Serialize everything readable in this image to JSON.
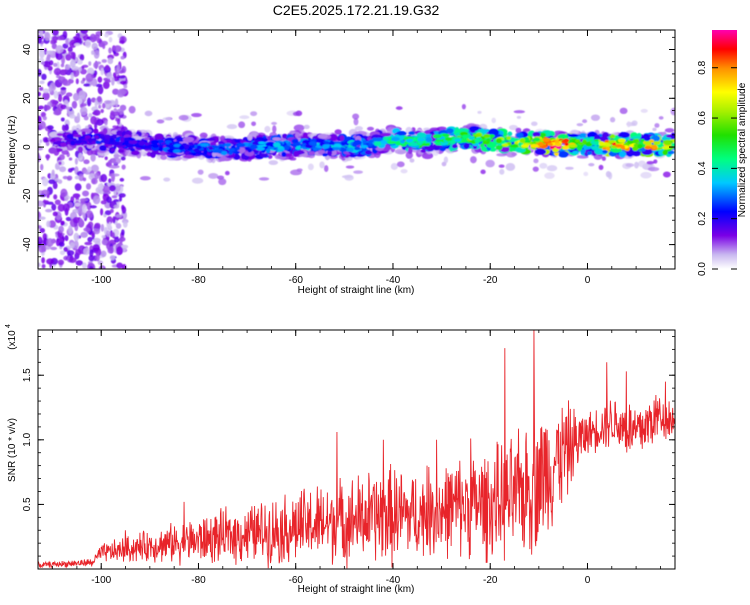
{
  "title": "C2E5.2025.172.21.19.G32",
  "chart_data": [
    {
      "type": "heatmap",
      "xlabel": "Height of straight line (km)",
      "ylabel": "Frequency (Hz)",
      "xlim": [
        -113,
        18
      ],
      "ylim": [
        -50,
        48
      ],
      "xticks": [
        "-100",
        "-80",
        "-60",
        "-40",
        "-20",
        "0"
      ],
      "xtick_values": [
        -100,
        -80,
        -60,
        -40,
        -20,
        0
      ],
      "yticks": [
        "-40",
        "-20",
        "0",
        "20",
        "40"
      ],
      "ytick_values": [
        -40,
        -20,
        0,
        20,
        40
      ],
      "colorbar": {
        "label": "Normalized spectral amplitude",
        "range": [
          0,
          0.95
        ],
        "ticks": [
          "0.0",
          "0.2",
          "0.4",
          "0.6",
          "0.8"
        ],
        "tick_values": [
          0.0,
          0.2,
          0.4,
          0.6,
          0.8
        ],
        "colormap": "rainbow"
      },
      "ridge": {
        "description_points_x": [
          -113,
          -105,
          -100,
          -95,
          -90,
          -85,
          -80,
          -75,
          -70,
          -65,
          -60,
          -55,
          -50,
          -45,
          -40,
          -35,
          -30,
          -25,
          -20,
          -15,
          -10,
          -5,
          0,
          5,
          10,
          15,
          18
        ],
        "center_freq": [
          2,
          3,
          3,
          2,
          1,
          0,
          0,
          -1,
          0,
          0,
          1,
          1,
          0,
          1,
          3,
          2,
          3,
          4,
          3,
          2,
          2,
          1,
          1,
          1,
          1,
          1,
          1
        ],
        "peak_amplitude": [
          0.2,
          0.2,
          0.25,
          0.25,
          0.25,
          0.3,
          0.3,
          0.3,
          0.3,
          0.35,
          0.35,
          0.35,
          0.4,
          0.4,
          0.45,
          0.5,
          0.5,
          0.6,
          0.6,
          0.65,
          0.8,
          0.95,
          0.5,
          0.9,
          0.7,
          0.85,
          0.6
        ]
      }
    },
    {
      "type": "line",
      "xlabel": "Height of straight line (km)",
      "ylabel": "SNR (10 * v/v)",
      "scale_label": "(x10",
      "scale_exp": "4",
      "xlim": [
        -113,
        18
      ],
      "ylim": [
        0,
        1.85
      ],
      "xticks": [
        "-100",
        "-80",
        "-60",
        "-40",
        "-20",
        "0"
      ],
      "xtick_values": [
        -100,
        -80,
        -60,
        -40,
        -20,
        0
      ],
      "yticks": [
        "0.5",
        "1.0",
        "1.5"
      ],
      "ytick_values": [
        0.5,
        1.0,
        1.5
      ],
      "color": "#e8242a",
      "envelope_x": [
        -113,
        -102,
        -100,
        -95,
        -90,
        -85,
        -80,
        -75,
        -70,
        -65,
        -60,
        -55,
        -50,
        -45,
        -40,
        -35,
        -30,
        -25,
        -20,
        -15,
        -10,
        -5,
        0,
        5,
        10,
        15,
        18
      ],
      "envelope_mid": [
        0.03,
        0.05,
        0.12,
        0.15,
        0.18,
        0.2,
        0.22,
        0.25,
        0.27,
        0.3,
        0.32,
        0.35,
        0.37,
        0.4,
        0.42,
        0.42,
        0.45,
        0.5,
        0.5,
        0.55,
        0.7,
        0.9,
        1.05,
        1.15,
        1.05,
        1.2,
        1.15
      ],
      "envelope_amp": [
        0.02,
        0.03,
        0.07,
        0.1,
        0.12,
        0.15,
        0.18,
        0.2,
        0.22,
        0.25,
        0.28,
        0.3,
        0.32,
        0.35,
        0.38,
        0.32,
        0.35,
        0.38,
        0.42,
        0.45,
        0.55,
        0.4,
        0.15,
        0.2,
        0.25,
        0.2,
        0.15
      ],
      "peaks": [
        {
          "x": -83,
          "y": 0.52
        },
        {
          "x": -51.5,
          "y": 1.06
        },
        {
          "x": -42,
          "y": 1.0
        },
        {
          "x": -33,
          "y": 0.8
        },
        {
          "x": -31,
          "y": 1.0
        },
        {
          "x": -24,
          "y": 1.01
        },
        {
          "x": -17,
          "y": 1.71
        },
        {
          "x": -11,
          "y": 1.85
        },
        {
          "x": 4,
          "y": 1.6
        },
        {
          "x": 8,
          "y": 1.53
        },
        {
          "x": 16,
          "y": 1.45
        },
        {
          "x": -102,
          "y": 0.02
        },
        {
          "x": -95,
          "y": 0.3
        }
      ]
    }
  ]
}
